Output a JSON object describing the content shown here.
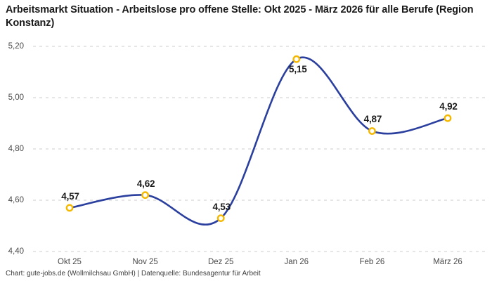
{
  "header": {
    "title": "Arbeitsmarkt Situation - Arbeitslose pro offene Stelle: Okt 2025 - März 2026 für alle Berufe (Region Konstanz)"
  },
  "footer": {
    "credit": "Chart: gute-jobs.de (Wollmilchsau GmbH) | Datenquelle: Bundesagentur für Arbeit"
  },
  "colors": {
    "line": "#2A3F9E",
    "marker_ring": "#F5B800",
    "marker_fill": "#FFFFFF",
    "grid": "#CCCCCC",
    "axis_text": "#4A4A4A",
    "value_label_text": "#1C1C1C",
    "title_text": "#1A1A1A",
    "background": "#FFFFFF"
  },
  "chart_data": {
    "type": "line",
    "title": "Arbeitsmarkt Situation - Arbeitslose pro offene Stelle: Okt 2025 - März 2026 für alle Berufe (Region Konstanz)",
    "categories": [
      "Okt 25",
      "Nov 25",
      "Dez 25",
      "Jan 26",
      "Feb 26",
      "März 26"
    ],
    "values": [
      4.57,
      4.62,
      4.53,
      5.15,
      4.87,
      4.92
    ],
    "value_labels": [
      "4,57",
      "4,62",
      "4,53",
      "5,15",
      "4,87",
      "4,92"
    ],
    "value_label_positions": [
      "above",
      "above",
      "above",
      "below",
      "above",
      "above"
    ],
    "y_ticks": [
      4.4,
      4.6,
      4.8,
      5.0,
      5.2
    ],
    "y_tick_labels": [
      "4,40",
      "4,60",
      "4,80",
      "5,00",
      "5,20"
    ],
    "ylim": [
      4.4,
      5.2
    ],
    "xlabel": "",
    "ylabel": "",
    "grid": "horizontal-dashed",
    "legend": "none",
    "smooth": true
  }
}
